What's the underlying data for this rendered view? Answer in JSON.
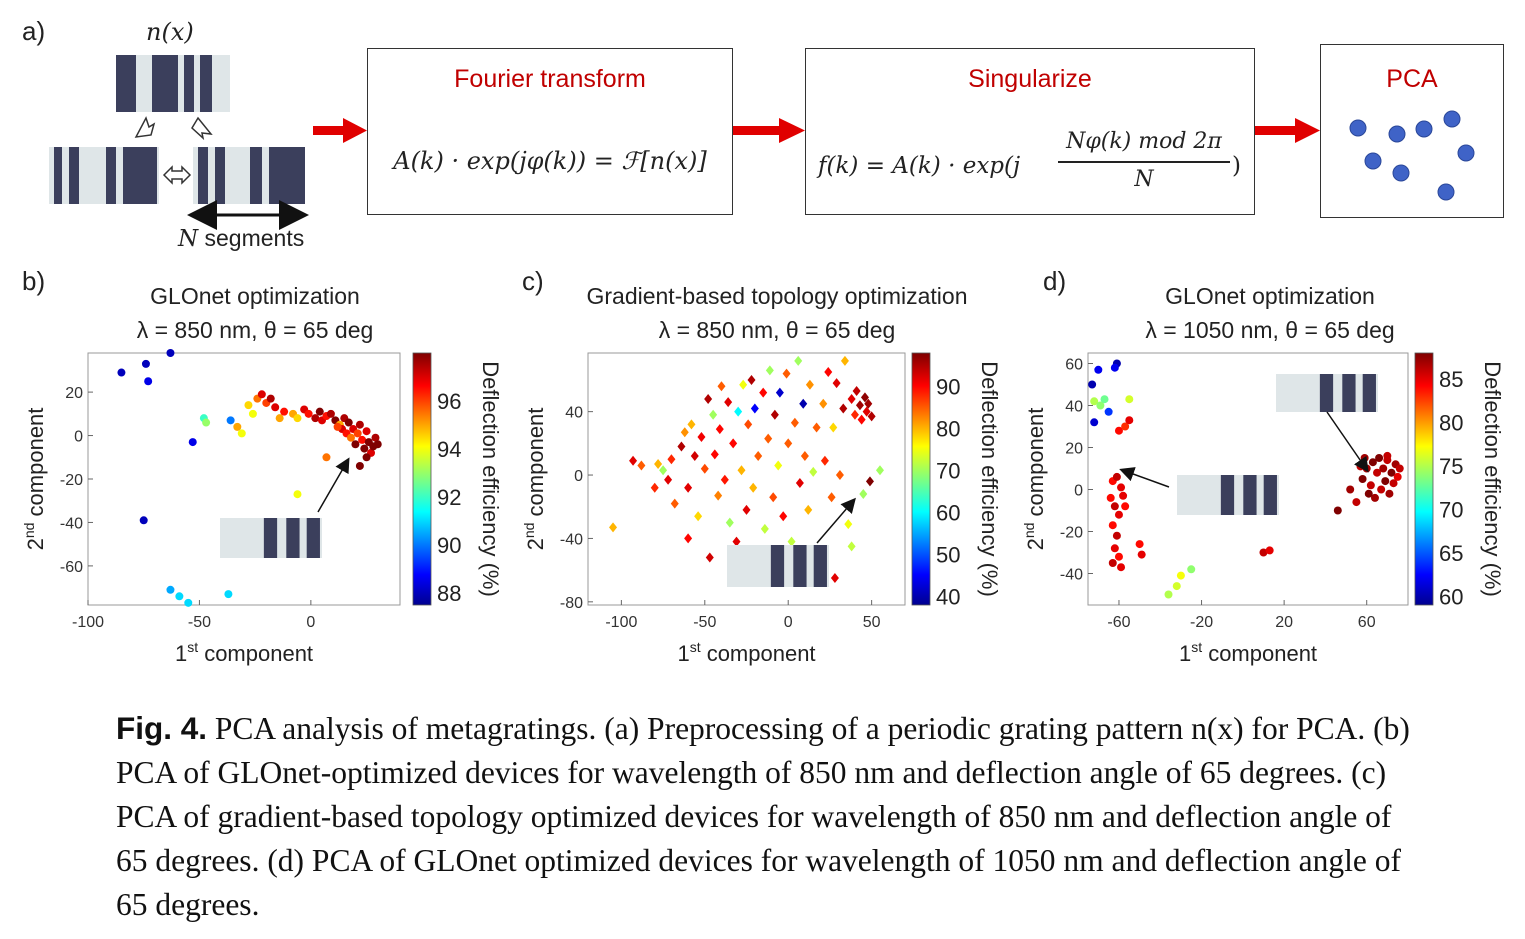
{
  "panel_a": {
    "label": "a)",
    "nx_label": "n(x)",
    "segments_label": "N segments",
    "boxes": [
      {
        "title": "Fourier transform",
        "equation": "A(k) · exp(jφ(k)) = ℱ[n(x)]"
      },
      {
        "title": "Singularize",
        "equation_left": "f(k) = A(k) · exp(j",
        "equation_num": "Nφ(k) mod 2π",
        "equation_den": "N",
        "equation_right": ")"
      },
      {
        "title": "PCA"
      }
    ],
    "colors": {
      "arrow": "#e00000",
      "title": "#c00000",
      "dot": "#3f63c7",
      "bar": "#3b3f5c",
      "strip": "#dfe6e8"
    }
  },
  "chart_data": [
    {
      "type": "scatter",
      "panel": "b)",
      "title": "GLOnet optimization",
      "subtitle": "λ = 850 nm, θ = 65 deg",
      "xlabel": "1st component",
      "ylabel": "2nd component",
      "colorbar_label": "Deflection efficiency (%)",
      "xlim": [
        -100,
        40
      ],
      "ylim": [
        -78,
        38
      ],
      "clim": [
        87.5,
        98
      ],
      "xticks": [
        -100,
        -50,
        0
      ],
      "yticks": [
        20,
        0,
        -20,
        -40,
        -60
      ],
      "cticks": [
        88,
        90,
        92,
        94,
        96
      ],
      "marker": "circle",
      "points": [
        {
          "x": -85,
          "y": 29,
          "c": 88
        },
        {
          "x": -74,
          "y": 33,
          "c": 88
        },
        {
          "x": -73,
          "y": 25,
          "c": 88.5
        },
        {
          "x": -63,
          "y": 38,
          "c": 88
        },
        {
          "x": -53,
          "y": -3,
          "c": 88.5
        },
        {
          "x": -75,
          "y": -39,
          "c": 88
        },
        {
          "x": -63,
          "y": -71,
          "c": 90.5
        },
        {
          "x": -59,
          "y": -74,
          "c": 91
        },
        {
          "x": -55,
          "y": -77,
          "c": 91
        },
        {
          "x": -37,
          "y": -73,
          "c": 91
        },
        {
          "x": -48,
          "y": 8,
          "c": 92
        },
        {
          "x": -47,
          "y": 6,
          "c": 93
        },
        {
          "x": -36,
          "y": 7,
          "c": 90
        },
        {
          "x": -33,
          "y": 4,
          "c": 95
        },
        {
          "x": -31,
          "y": 1,
          "c": 94
        },
        {
          "x": -28,
          "y": 14,
          "c": 94.5
        },
        {
          "x": -26,
          "y": 10,
          "c": 94
        },
        {
          "x": -24,
          "y": 17,
          "c": 95.5
        },
        {
          "x": -22,
          "y": 19,
          "c": 97
        },
        {
          "x": -20,
          "y": 15,
          "c": 96
        },
        {
          "x": -18,
          "y": 17,
          "c": 97.5
        },
        {
          "x": -16,
          "y": 13,
          "c": 97
        },
        {
          "x": -14,
          "y": 8,
          "c": 95
        },
        {
          "x": -12,
          "y": 11,
          "c": 96.5
        },
        {
          "x": -8,
          "y": 10,
          "c": 95
        },
        {
          "x": -6,
          "y": 8,
          "c": 94.5
        },
        {
          "x": -3,
          "y": 12,
          "c": 97
        },
        {
          "x": -1,
          "y": 10,
          "c": 96.5
        },
        {
          "x": 2,
          "y": 8,
          "c": 97.5
        },
        {
          "x": 4,
          "y": 11,
          "c": 98
        },
        {
          "x": 5,
          "y": 7,
          "c": 97
        },
        {
          "x": 7,
          "y": 9,
          "c": 96.5
        },
        {
          "x": 9,
          "y": 10,
          "c": 97.5
        },
        {
          "x": 11,
          "y": 7,
          "c": 98
        },
        {
          "x": 13,
          "y": 5,
          "c": 95
        },
        {
          "x": 14,
          "y": 3,
          "c": 97
        },
        {
          "x": 15,
          "y": 8,
          "c": 97.5
        },
        {
          "x": 16,
          "y": 1,
          "c": 96.5
        },
        {
          "x": 17,
          "y": 6,
          "c": 98
        },
        {
          "x": 18,
          "y": -1,
          "c": 95.5
        },
        {
          "x": 19,
          "y": 3,
          "c": 97
        },
        {
          "x": 20,
          "y": -4,
          "c": 98
        },
        {
          "x": 21,
          "y": 1,
          "c": 96
        },
        {
          "x": 22,
          "y": 5,
          "c": 97.5
        },
        {
          "x": 23,
          "y": -2,
          "c": 96.5
        },
        {
          "x": 24,
          "y": -6,
          "c": 98
        },
        {
          "x": 25,
          "y": 2,
          "c": 97
        },
        {
          "x": 26,
          "y": -3,
          "c": 98
        },
        {
          "x": 27,
          "y": -8,
          "c": 97
        },
        {
          "x": 28,
          "y": -5,
          "c": 98
        },
        {
          "x": 29,
          "y": -1,
          "c": 97.5
        },
        {
          "x": 30,
          "y": -4,
          "c": 98
        },
        {
          "x": 25,
          "y": -10,
          "c": 98
        },
        {
          "x": 22,
          "y": -14,
          "c": 98
        },
        {
          "x": 7,
          "y": -10,
          "c": 95.5
        },
        {
          "x": -6,
          "y": -27,
          "c": 94
        },
        {
          "x": 12,
          "y": 4,
          "c": 96
        }
      ],
      "inset": {
        "bars": 3
      }
    },
    {
      "type": "scatter",
      "panel": "c)",
      "title": "Gradient-based topology optimization",
      "subtitle": "λ = 850 nm, θ = 65 deg",
      "xlabel": "1st component",
      "ylabel": "2nd component",
      "colorbar_label": "Deflection efficiency (%)",
      "xlim": [
        -120,
        70
      ],
      "ylim": [
        -82,
        77
      ],
      "clim": [
        38,
        98
      ],
      "xticks": [
        -100,
        -50,
        0,
        50
      ],
      "yticks": [
        40,
        0,
        -40,
        -80
      ],
      "cticks": [
        40,
        50,
        60,
        70,
        80,
        90
      ],
      "marker": "diamond",
      "points": [
        {
          "x": -105,
          "y": -33,
          "c": 80
        },
        {
          "x": -93,
          "y": 9,
          "c": 92
        },
        {
          "x": -88,
          "y": 6,
          "c": 85
        },
        {
          "x": -80,
          "y": -8,
          "c": 88
        },
        {
          "x": -78,
          "y": 7,
          "c": 80
        },
        {
          "x": -75,
          "y": 3,
          "c": 70
        },
        {
          "x": -72,
          "y": -3,
          "c": 92
        },
        {
          "x": -68,
          "y": -18,
          "c": 85
        },
        {
          "x": -64,
          "y": 18,
          "c": 95
        },
        {
          "x": -62,
          "y": 27,
          "c": 82
        },
        {
          "x": -60,
          "y": -40,
          "c": 90
        },
        {
          "x": -58,
          "y": 32,
          "c": 80
        },
        {
          "x": -56,
          "y": 12,
          "c": 93
        },
        {
          "x": -54,
          "y": -26,
          "c": 78
        },
        {
          "x": -52,
          "y": 24,
          "c": 91
        },
        {
          "x": -50,
          "y": 4,
          "c": 86
        },
        {
          "x": -48,
          "y": 48,
          "c": 95
        },
        {
          "x": -47,
          "y": -52,
          "c": 93
        },
        {
          "x": -45,
          "y": 38,
          "c": 70
        },
        {
          "x": -44,
          "y": 13,
          "c": 90
        },
        {
          "x": -42,
          "y": -13,
          "c": 83
        },
        {
          "x": -41,
          "y": 29,
          "c": 90
        },
        {
          "x": -40,
          "y": 56,
          "c": 85
        },
        {
          "x": -38,
          "y": -3,
          "c": 89
        },
        {
          "x": -36,
          "y": 46,
          "c": 92
        },
        {
          "x": -35,
          "y": -30,
          "c": 70
        },
        {
          "x": -33,
          "y": 20,
          "c": 90
        },
        {
          "x": -31,
          "y": -42,
          "c": 92
        },
        {
          "x": -30,
          "y": 40,
          "c": 60
        },
        {
          "x": -28,
          "y": 3,
          "c": 80
        },
        {
          "x": -27,
          "y": 57,
          "c": 75
        },
        {
          "x": -25,
          "y": -22,
          "c": 92
        },
        {
          "x": -24,
          "y": 32,
          "c": 86
        },
        {
          "x": -22,
          "y": 60,
          "c": 95
        },
        {
          "x": -21,
          "y": -8,
          "c": 80
        },
        {
          "x": -20,
          "y": 42,
          "c": 45
        },
        {
          "x": -18,
          "y": 12,
          "c": 85
        },
        {
          "x": -17,
          "y": -60,
          "c": 95
        },
        {
          "x": -15,
          "y": 52,
          "c": 90
        },
        {
          "x": -14,
          "y": -34,
          "c": 72
        },
        {
          "x": -12,
          "y": 23,
          "c": 85
        },
        {
          "x": -11,
          "y": 66,
          "c": 70
        },
        {
          "x": -9,
          "y": -14,
          "c": 86
        },
        {
          "x": -8,
          "y": 38,
          "c": 95
        },
        {
          "x": -6,
          "y": 6,
          "c": 75
        },
        {
          "x": -5,
          "y": 52,
          "c": 42
        },
        {
          "x": -3,
          "y": -26,
          "c": 90
        },
        {
          "x": -1,
          "y": 64,
          "c": 85
        },
        {
          "x": 0,
          "y": 20,
          "c": 85
        },
        {
          "x": 2,
          "y": -42,
          "c": 72
        },
        {
          "x": 4,
          "y": 33,
          "c": 85
        },
        {
          "x": 6,
          "y": 72,
          "c": 70
        },
        {
          "x": 7,
          "y": -5,
          "c": 92
        },
        {
          "x": 9,
          "y": 45,
          "c": 40
        },
        {
          "x": 10,
          "y": 12,
          "c": 85
        },
        {
          "x": 12,
          "y": -22,
          "c": 80
        },
        {
          "x": 13,
          "y": 57,
          "c": 82
        },
        {
          "x": 15,
          "y": 2,
          "c": 72
        },
        {
          "x": 17,
          "y": 30,
          "c": 85
        },
        {
          "x": 19,
          "y": -48,
          "c": 90
        },
        {
          "x": 21,
          "y": 45,
          "c": 82
        },
        {
          "x": 22,
          "y": 9,
          "c": 88
        },
        {
          "x": 24,
          "y": 65,
          "c": 90
        },
        {
          "x": 26,
          "y": -14,
          "c": 85
        },
        {
          "x": 27,
          "y": 30,
          "c": 78
        },
        {
          "x": 29,
          "y": 58,
          "c": 92
        },
        {
          "x": 31,
          "y": 0,
          "c": 85
        },
        {
          "x": 33,
          "y": 42,
          "c": 95
        },
        {
          "x": 34,
          "y": 72,
          "c": 80
        },
        {
          "x": 36,
          "y": -31,
          "c": 75
        },
        {
          "x": 38,
          "y": 48,
          "c": 92
        },
        {
          "x": 40,
          "y": 38,
          "c": 88
        },
        {
          "x": 41,
          "y": 53,
          "c": 94
        },
        {
          "x": 43,
          "y": 44,
          "c": 96
        },
        {
          "x": 44,
          "y": 35,
          "c": 90
        },
        {
          "x": 46,
          "y": 49,
          "c": 97
        },
        {
          "x": 47,
          "y": 40,
          "c": 92
        },
        {
          "x": 48,
          "y": 45,
          "c": 96
        },
        {
          "x": 50,
          "y": 37,
          "c": 95
        },
        {
          "x": 49,
          "y": -4,
          "c": 98
        },
        {
          "x": 55,
          "y": 3,
          "c": 70
        },
        {
          "x": 45,
          "y": -12,
          "c": 70
        },
        {
          "x": 38,
          "y": -45,
          "c": 72
        },
        {
          "x": 22,
          "y": -50,
          "c": 88
        },
        {
          "x": -60,
          "y": -8,
          "c": 92
        },
        {
          "x": -70,
          "y": 10,
          "c": 88
        },
        {
          "x": 28,
          "y": -65,
          "c": 92
        }
      ],
      "inset": {
        "bars": 3
      }
    },
    {
      "type": "scatter",
      "panel": "d)",
      "title": "GLOnet optimization",
      "subtitle": "λ = 1050 nm, θ = 65 deg",
      "xlabel": "1st component",
      "ylabel": "2nd component",
      "colorbar_label": "Deflection efficiency (%)",
      "xlim": [
        -75,
        80
      ],
      "ylim": [
        -55,
        65
      ],
      "clim": [
        59,
        88
      ],
      "xticks": [
        -60,
        -20,
        20,
        60
      ],
      "yticks": [
        60,
        40,
        20,
        0,
        -20,
        -40
      ],
      "cticks": [
        60,
        65,
        70,
        75,
        80,
        85
      ],
      "marker": "circle",
      "points": [
        {
          "x": -73,
          "y": 50,
          "c": 60
        },
        {
          "x": -72,
          "y": 32,
          "c": 61
        },
        {
          "x": -72,
          "y": 42,
          "c": 75
        },
        {
          "x": -70,
          "y": 57,
          "c": 62
        },
        {
          "x": -69,
          "y": 40,
          "c": 74
        },
        {
          "x": -67,
          "y": 43,
          "c": 73
        },
        {
          "x": -65,
          "y": 37,
          "c": 64
        },
        {
          "x": -61,
          "y": 60,
          "c": 60
        },
        {
          "x": -62,
          "y": 58,
          "c": 62
        },
        {
          "x": -55,
          "y": 43,
          "c": 76
        },
        {
          "x": -60,
          "y": 28,
          "c": 84
        },
        {
          "x": -57,
          "y": 30,
          "c": 83
        },
        {
          "x": -55,
          "y": 33,
          "c": 85
        },
        {
          "x": -63,
          "y": 4,
          "c": 84
        },
        {
          "x": -61,
          "y": 6,
          "c": 86
        },
        {
          "x": -59,
          "y": 1,
          "c": 85
        },
        {
          "x": -64,
          "y": -4,
          "c": 84
        },
        {
          "x": -62,
          "y": -8,
          "c": 86
        },
        {
          "x": -60,
          "y": -12,
          "c": 85
        },
        {
          "x": -63,
          "y": -17,
          "c": 84
        },
        {
          "x": -61,
          "y": -22,
          "c": 86
        },
        {
          "x": -62,
          "y": -28,
          "c": 85
        },
        {
          "x": -60,
          "y": -32,
          "c": 84
        },
        {
          "x": -63,
          "y": -35,
          "c": 86
        },
        {
          "x": -59,
          "y": -37,
          "c": 85
        },
        {
          "x": -57,
          "y": -8,
          "c": 84
        },
        {
          "x": -58,
          "y": -3,
          "c": 85
        },
        {
          "x": -50,
          "y": -26,
          "c": 84
        },
        {
          "x": -49,
          "y": -31,
          "c": 85
        },
        {
          "x": -30,
          "y": -41,
          "c": 77
        },
        {
          "x": -32,
          "y": -46,
          "c": 76
        },
        {
          "x": -36,
          "y": -50,
          "c": 75
        },
        {
          "x": -25,
          "y": -38,
          "c": 74
        },
        {
          "x": 10,
          "y": -30,
          "c": 86
        },
        {
          "x": 13,
          "y": -29,
          "c": 85
        },
        {
          "x": 46,
          "y": -10,
          "c": 88
        },
        {
          "x": 52,
          "y": 0,
          "c": 87
        },
        {
          "x": 55,
          "y": -6,
          "c": 86
        },
        {
          "x": 58,
          "y": 5,
          "c": 88
        },
        {
          "x": 60,
          "y": 10,
          "c": 87
        },
        {
          "x": 62,
          "y": 2,
          "c": 86
        },
        {
          "x": 63,
          "y": 13,
          "c": 88
        },
        {
          "x": 64,
          "y": -4,
          "c": 87
        },
        {
          "x": 65,
          "y": 8,
          "c": 86
        },
        {
          "x": 66,
          "y": 15,
          "c": 88
        },
        {
          "x": 67,
          "y": 0,
          "c": 86
        },
        {
          "x": 68,
          "y": 10,
          "c": 87
        },
        {
          "x": 69,
          "y": 4,
          "c": 88
        },
        {
          "x": 70,
          "y": 14,
          "c": 86
        },
        {
          "x": 71,
          "y": -2,
          "c": 87
        },
        {
          "x": 72,
          "y": 8,
          "c": 88
        },
        {
          "x": 73,
          "y": 3,
          "c": 86
        },
        {
          "x": 74,
          "y": 12,
          "c": 87
        },
        {
          "x": 75,
          "y": 6,
          "c": 85
        },
        {
          "x": 76,
          "y": 10,
          "c": 86
        },
        {
          "x": 59,
          "y": 15,
          "c": 87
        },
        {
          "x": 57,
          "y": 11,
          "c": 86
        },
        {
          "x": 61,
          "y": -2,
          "c": 88
        },
        {
          "x": 70,
          "y": 16,
          "c": 86
        }
      ],
      "insets": [
        {
          "bars": 3
        },
        {
          "bars": 3
        }
      ]
    }
  ],
  "caption": {
    "label": "Fig. 4.",
    "text": "PCA analysis of metagratings. (a) Preprocessing of a periodic grating pattern n(x) for PCA. (b) PCA of GLOnet-optimized devices for wavelength of 850 nm and deflection angle of 65 degrees. (c) PCA of gradient-based topology optimized devices for wavelength of 850 nm and deflection angle of 65 degrees. (d) PCA of GLOnet optimized devices for wavelength of 1050 nm and deflection angle of 65 degrees."
  }
}
